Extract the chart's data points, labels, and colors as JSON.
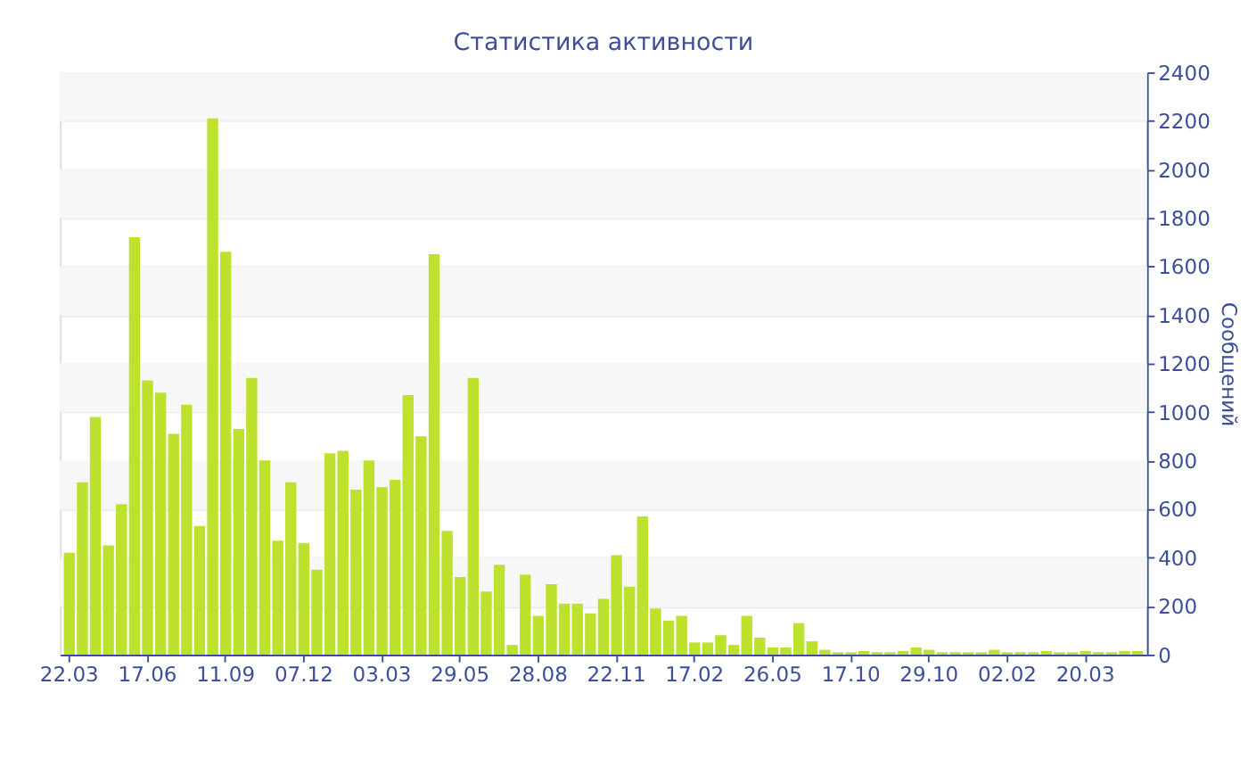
{
  "chart_data": {
    "type": "bar",
    "title": "Статистика активности",
    "ylabel": "Сообщений",
    "categories": [
      "22.03",
      null,
      null,
      null,
      null,
      null,
      "17.06",
      null,
      null,
      null,
      null,
      null,
      "11.09",
      null,
      null,
      null,
      null,
      null,
      "07.12",
      null,
      null,
      null,
      null,
      null,
      "03.03",
      null,
      null,
      null,
      null,
      null,
      "29.05",
      null,
      null,
      null,
      null,
      null,
      "28.08",
      null,
      null,
      null,
      null,
      null,
      "22.11",
      null,
      null,
      null,
      null,
      null,
      "17.02",
      null,
      null,
      null,
      null,
      null,
      "26.05",
      null,
      null,
      null,
      null,
      null,
      "17.10",
      null,
      null,
      null,
      null,
      null,
      "29.10",
      null,
      null,
      null,
      null,
      null,
      "02.02",
      null,
      null,
      null,
      null,
      null,
      "20.03",
      null,
      null,
      null,
      null
    ],
    "values": [
      420,
      710,
      980,
      450,
      620,
      1720,
      1130,
      1080,
      910,
      1030,
      530,
      2210,
      1660,
      930,
      1140,
      800,
      470,
      710,
      460,
      350,
      830,
      840,
      680,
      800,
      690,
      720,
      1070,
      900,
      1650,
      510,
      320,
      1140,
      260,
      370,
      40,
      330,
      160,
      290,
      210,
      210,
      170,
      230,
      410,
      280,
      570,
      190,
      140,
      160,
      50,
      50,
      80,
      40,
      160,
      70,
      30,
      30,
      130,
      55,
      20,
      10,
      10,
      15,
      10,
      10,
      15,
      30,
      20,
      10,
      10,
      10,
      10,
      20,
      10,
      10,
      10,
      15,
      10,
      10,
      15,
      10,
      10,
      15,
      15
    ],
    "color": "#bde22e",
    "ylim": [
      0,
      2400
    ],
    "yticks": [
      0,
      200,
      400,
      600,
      800,
      1000,
      1200,
      1400,
      1600,
      1800,
      2000,
      2200,
      2400
    ],
    "grid": true
  }
}
